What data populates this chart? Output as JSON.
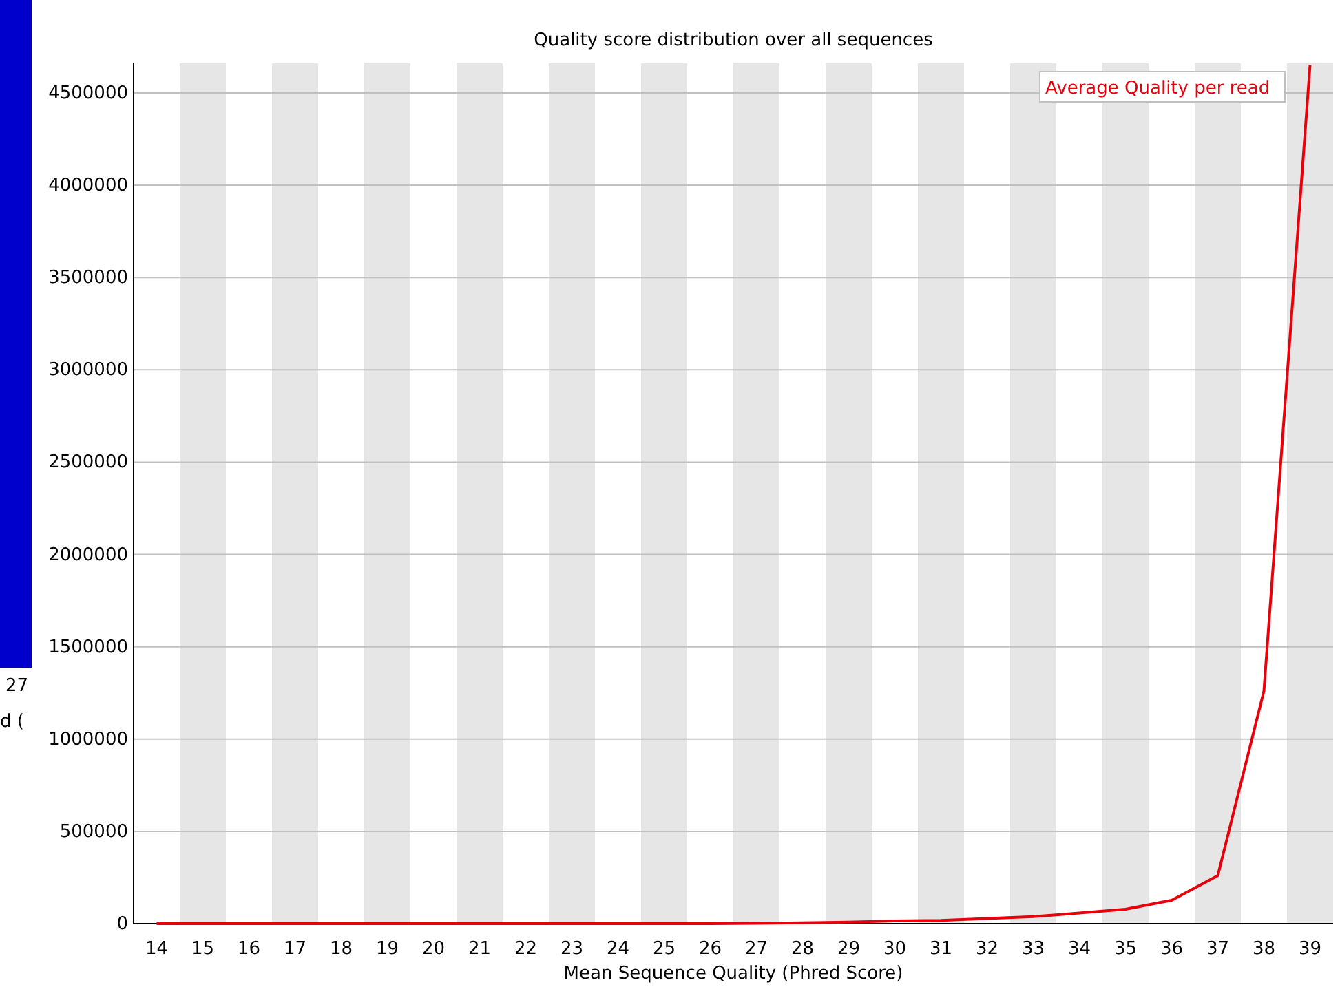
{
  "chart_data": {
    "type": "line",
    "title": "Quality score distribution over all sequences",
    "xlabel": "Mean Sequence Quality (Phred Score)",
    "categories": [
      "14",
      "15",
      "16",
      "17",
      "18",
      "19",
      "20",
      "21",
      "22",
      "23",
      "24",
      "25",
      "26",
      "27",
      "28",
      "29",
      "30",
      "31",
      "32",
      "33",
      "34",
      "35",
      "36",
      "37",
      "38",
      "39"
    ],
    "series": [
      {
        "name": "Average Quality per read",
        "color": "#e8000b",
        "values": [
          0,
          0,
          0,
          0,
          0,
          0,
          0,
          0,
          0,
          0,
          0,
          0,
          0,
          2000,
          5000,
          8000,
          15000,
          18000,
          28000,
          38000,
          58000,
          78000,
          127000,
          260000,
          1260000,
          4650000
        ]
      }
    ],
    "ylim": [
      0,
      4660000
    ],
    "yticks": [
      0,
      500000,
      1000000,
      1500000,
      2000000,
      2500000,
      3000000,
      3500000,
      4000000,
      4500000
    ],
    "grid": "y",
    "legend": "top right",
    "annotations": [
      "27",
      "d ("
    ]
  }
}
